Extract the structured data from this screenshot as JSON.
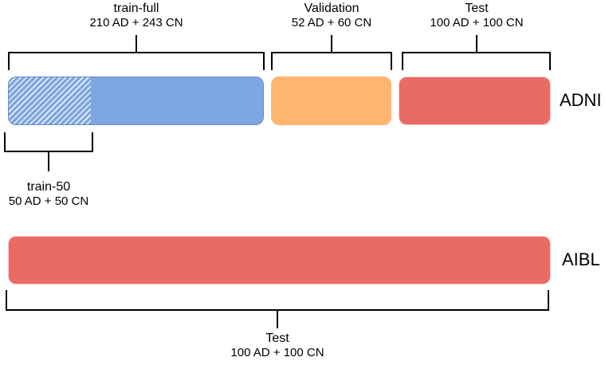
{
  "adni": {
    "name": "ADNI",
    "train_full": {
      "name": "train-full",
      "count": "210 AD + 243 CN"
    },
    "train_50": {
      "name": "train-50",
      "count": "50 AD + 50 CN"
    },
    "validation": {
      "name": "Validation",
      "count": "52 AD + 60 CN"
    },
    "test": {
      "name": "Test",
      "count": "100 AD + 100 CN"
    }
  },
  "aibl": {
    "name": "AIBL",
    "test": {
      "name": "Test",
      "count": "100 AD + 100 CN"
    }
  },
  "colors": {
    "train": "#7ea6e0",
    "validation": "#ffb570",
    "test": "#ea6b66",
    "test_border": "#f8cecc"
  }
}
